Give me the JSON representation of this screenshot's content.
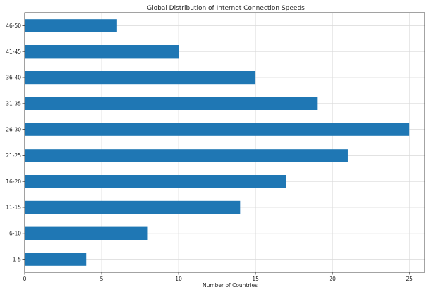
{
  "chart_data": {
    "type": "bar",
    "orientation": "horizontal",
    "title": "Global Distribution of Internet Connection Speeds",
    "xlabel": "Number of Countries",
    "ylabel": "",
    "categories": [
      "1-5",
      "6-10",
      "11-15",
      "16-20",
      "21-25",
      "26-30",
      "31-35",
      "36-40",
      "41-45",
      "46-50"
    ],
    "values": [
      4,
      8,
      14,
      17,
      21,
      25,
      19,
      15,
      10,
      6
    ],
    "xlim": [
      0,
      26
    ],
    "xticks": [
      0,
      5,
      10,
      15,
      20,
      25
    ],
    "grid": true,
    "colors": {
      "bar": "#1f77b4"
    }
  }
}
